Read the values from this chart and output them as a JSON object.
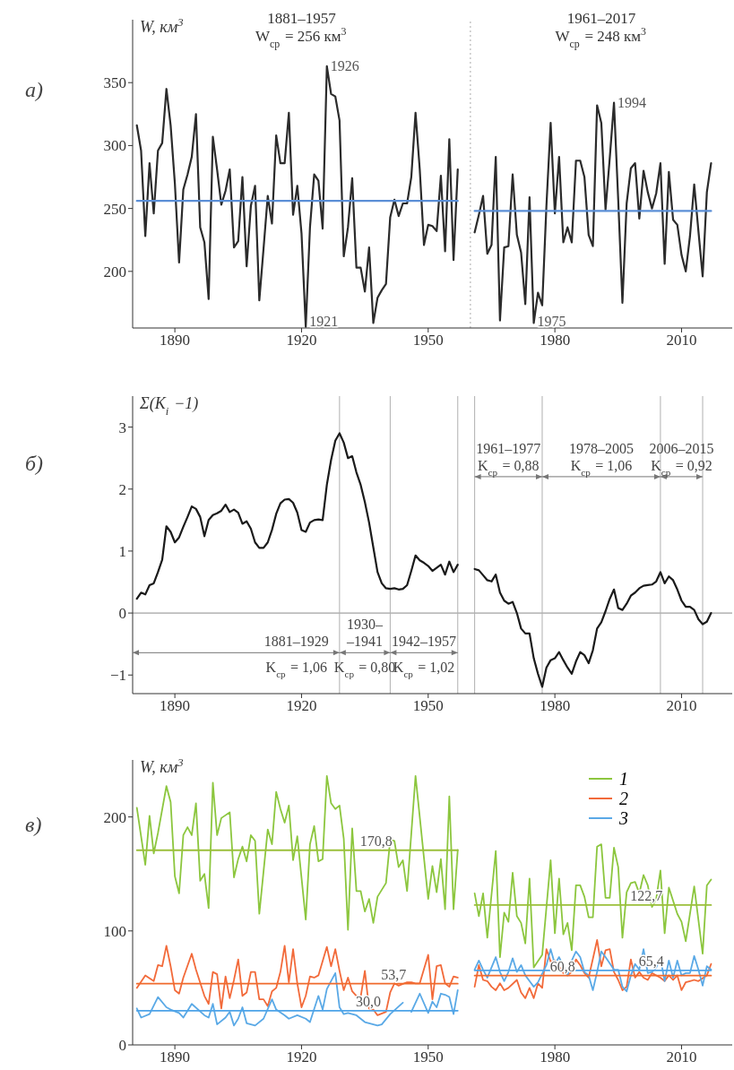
{
  "chart_data": [
    {
      "type": "line",
      "title": "а)",
      "ylabel": "W, км$^{3}$",
      "xlim": [
        1880,
        2022
      ],
      "ylim": [
        155,
        400
      ],
      "xticks": [
        1890,
        1920,
        1950,
        1980,
        2010
      ],
      "yticks": [
        200,
        250,
        300,
        350
      ],
      "series": [
        {
          "color": "#2b2b2b",
          "x": [
            1881,
            1882,
            1883,
            1884,
            1885,
            1886,
            1887,
            1888,
            1889,
            1890,
            1891,
            1892,
            1893,
            1894,
            1895,
            1896,
            1897,
            1898,
            1899,
            1900,
            1901,
            1902,
            1903,
            1904,
            1905,
            1906,
            1907,
            1908,
            1909,
            1910,
            1911,
            1912,
            1913,
            1914,
            1915,
            1916,
            1917,
            1918,
            1919,
            1920,
            1921,
            1922,
            1923,
            1924,
            1925,
            1926,
            1927,
            1928,
            1929,
            1930,
            1931,
            1932,
            1933,
            1934,
            1935,
            1936,
            1937,
            1938,
            1939,
            1940,
            1941,
            1942,
            1943,
            1944,
            1945,
            1946,
            1947,
            1948,
            1949,
            1950,
            1951,
            1952,
            1953,
            1954,
            1955,
            1956,
            1957
          ],
          "values": [
            316,
            296,
            228,
            286,
            246,
            296,
            302,
            345,
            316,
            270,
            207,
            265,
            277,
            291,
            325,
            235,
            223,
            178,
            307,
            281,
            253,
            264,
            281,
            219,
            224,
            275,
            204,
            252,
            268,
            177,
            218,
            260,
            238,
            308,
            286,
            286,
            326,
            245,
            268,
            230,
            156,
            235,
            277,
            272,
            234,
            363,
            341,
            339,
            320,
            212,
            235,
            274,
            203,
            203,
            184,
            219,
            159,
            179,
            185,
            190,
            243,
            257,
            244,
            254,
            254,
            275,
            326,
            281,
            221,
            237,
            236,
            232,
            276,
            216,
            305,
            209,
            281
          ]
        },
        {
          "color": "#2b2b2b",
          "x": [
            1961,
            1962,
            1963,
            1964,
            1965,
            1966,
            1967,
            1968,
            1969,
            1970,
            1971,
            1972,
            1973,
            1974,
            1975,
            1976,
            1977,
            1978,
            1979,
            1980,
            1981,
            1982,
            1983,
            1984,
            1985,
            1986,
            1987,
            1988,
            1989,
            1990,
            1991,
            1992,
            1993,
            1994,
            1995,
            1996,
            1997,
            1998,
            1999,
            2000,
            2001,
            2002,
            2003,
            2004,
            2005,
            2006,
            2007,
            2008,
            2009,
            2010,
            2011,
            2012,
            2013,
            2014,
            2015,
            2016,
            2017
          ],
          "values": [
            231,
            245,
            260,
            214,
            221,
            291,
            161,
            219,
            220,
            277,
            229,
            215,
            174,
            259,
            159,
            183,
            173,
            252,
            318,
            246,
            291,
            223,
            235,
            223,
            288,
            288,
            275,
            229,
            220,
            332,
            318,
            249,
            290,
            334,
            257,
            175,
            254,
            282,
            286,
            242,
            280,
            263,
            250,
            262,
            286,
            206,
            279,
            241,
            237,
            213,
            200,
            228,
            269,
            232,
            196,
            263,
            286
          ]
        },
        {
          "color": "#5b8fd6",
          "x": [
            1881,
            1957
          ],
          "values": [
            256,
            256
          ]
        },
        {
          "color": "#5b8fd6",
          "x": [
            1961,
            2017
          ],
          "values": [
            248,
            248
          ]
        }
      ],
      "ref_lines": [
        {
          "axis": "x",
          "value": 1960,
          "color": "#aaaaaa",
          "line_style": "dotted"
        }
      ],
      "annotations": [
        "1881–1957\nW$_{ср}$ = 256 км$^{3}$",
        "1961–2017\nW$_{ср}$ = 248 км$^{3}$",
        {
          "text": "1926",
          "x": 1926,
          "y": 363
        },
        {
          "text": "1921",
          "x": 1921,
          "y": 160
        },
        {
          "text": "1975",
          "x": 1975,
          "y": 160
        },
        {
          "text": "1994",
          "x": 1994,
          "y": 334
        }
      ]
    },
    {
      "type": "line",
      "title": "б)",
      "ylabel": "Σ(K$_{i}$ −1)",
      "xlim": [
        1880,
        2022
      ],
      "ylim": [
        -1.3,
        3.5
      ],
      "xticks": [
        1890,
        1920,
        1950,
        1980,
        2010
      ],
      "yticks": [
        -1,
        0,
        1,
        2,
        3
      ],
      "series": [
        {
          "color": "#1a1a1a",
          "x": [
            1881,
            1882,
            1883,
            1884,
            1885,
            1886,
            1887,
            1888,
            1889,
            1890,
            1891,
            1892,
            1893,
            1894,
            1895,
            1896,
            1897,
            1898,
            1899,
            1900,
            1901,
            1902,
            1903,
            1904,
            1905,
            1906,
            1907,
            1908,
            1909,
            1910,
            1911,
            1912,
            1913,
            1914,
            1915,
            1916,
            1917,
            1918,
            1919,
            1920,
            1921,
            1922,
            1923,
            1924,
            1925,
            1926,
            1927,
            1928,
            1929,
            1930,
            1931,
            1932,
            1933,
            1934,
            1935,
            1936,
            1937,
            1938,
            1939,
            1940,
            1941,
            1942,
            1943,
            1944,
            1945,
            1946,
            1947,
            1948,
            1949,
            1950,
            1951,
            1952,
            1953,
            1954,
            1955,
            1956,
            1957
          ],
          "values": [
            0.23,
            0.33,
            0.3,
            0.45,
            0.48,
            0.66,
            0.86,
            1.4,
            1.31,
            1.14,
            1.22,
            1.39,
            1.55,
            1.72,
            1.68,
            1.55,
            1.24,
            1.5,
            1.58,
            1.61,
            1.65,
            1.75,
            1.63,
            1.67,
            1.62,
            1.44,
            1.48,
            1.36,
            1.14,
            1.05,
            1.05,
            1.14,
            1.34,
            1.6,
            1.77,
            1.83,
            1.84,
            1.78,
            1.62,
            1.34,
            1.31,
            1.46,
            1.5,
            1.51,
            1.5,
            2.07,
            2.47,
            2.78,
            2.9,
            2.75,
            2.5,
            2.53,
            2.27,
            2.07,
            1.79,
            1.46,
            1.06,
            0.66,
            0.48,
            0.4,
            0.39,
            0.4,
            0.38,
            0.39,
            0.45,
            0.68,
            0.93,
            0.85,
            0.81,
            0.76,
            0.68,
            0.73,
            0.78,
            0.62,
            0.83,
            0.66,
            0.78
          ]
        },
        {
          "color": "#1a1a1a",
          "x": [
            1961,
            1962,
            1963,
            1964,
            1965,
            1966,
            1967,
            1968,
            1969,
            1970,
            1971,
            1972,
            1973,
            1974,
            1975,
            1976,
            1977,
            1978,
            1979,
            1980,
            1981,
            1982,
            1983,
            1984,
            1985,
            1986,
            1987,
            1988,
            1989,
            1990,
            1991,
            1992,
            1993,
            1994,
            1995,
            1996,
            1997,
            1998,
            1999,
            2000,
            2001,
            2002,
            2003,
            2004,
            2005,
            2006,
            2007,
            2008,
            2009,
            2010,
            2011,
            2012,
            2013,
            2014,
            2015,
            2016,
            2017
          ],
          "values": [
            0.71,
            0.69,
            0.61,
            0.53,
            0.51,
            0.62,
            0.33,
            0.2,
            0.15,
            0.18,
            0.0,
            -0.25,
            -0.33,
            -0.33,
            -0.73,
            -0.98,
            -1.19,
            -0.88,
            -0.76,
            -0.73,
            -0.63,
            -0.76,
            -0.88,
            -0.98,
            -0.78,
            -0.63,
            -0.68,
            -0.81,
            -0.6,
            -0.25,
            -0.15,
            0.03,
            0.23,
            0.38,
            0.08,
            0.05,
            0.15,
            0.28,
            0.33,
            0.4,
            0.44,
            0.45,
            0.46,
            0.51,
            0.66,
            0.48,
            0.59,
            0.53,
            0.38,
            0.2,
            0.1,
            0.1,
            0.05,
            -0.1,
            -0.18,
            -0.14,
            0.0
          ]
        }
      ],
      "ref_lines": [
        {
          "axis": "y",
          "value": 0,
          "color": "#8a8a8a"
        },
        {
          "axis": "x",
          "value": 1929,
          "color": "#b0b0b0"
        },
        {
          "axis": "x",
          "value": 1941,
          "color": "#b0b0b0"
        },
        {
          "axis": "x",
          "value": 1957,
          "color": "#b0b0b0"
        },
        {
          "axis": "x",
          "value": 1961,
          "color": "#b0b0b0"
        },
        {
          "axis": "x",
          "value": 1977,
          "color": "#b0b0b0"
        },
        {
          "axis": "x",
          "value": 2005,
          "color": "#b0b0b0"
        },
        {
          "axis": "x",
          "value": 2015,
          "color": "#b0b0b0"
        }
      ],
      "annotations": [
        {
          "text": "1881–1929\nK$_{ср}$ = 1,06",
          "x": 1929,
          "y": -0.64
        },
        {
          "text": "1930–\n–1941\nK$_{ср}$ = 0,80",
          "x": 1941,
          "y": -0.64
        },
        {
          "text": "1942–1957\nK$_{ср}$ = 1,02",
          "x": 1957,
          "y": -0.64
        },
        {
          "text": "1961–1977\nK$_{ср}$ = 0,88",
          "x": 1977,
          "y": 2.2
        },
        {
          "text": "1978–2005\nK$_{ср}$ = 1,06",
          "x": 2005,
          "y": 2.2
        },
        {
          "text": "2006–2015\nK$_{ср}$ = 0,92",
          "x": 2015,
          "y": 2.2
        }
      ]
    },
    {
      "type": "line",
      "title": "в)",
      "ylabel": "W, км$^{3}$",
      "xlim": [
        1880,
        2022
      ],
      "ylim": [
        0,
        250
      ],
      "xticks": [
        1890,
        1920,
        1950,
        1980,
        2010
      ],
      "yticks": [
        0,
        100,
        200
      ],
      "legend": "top right",
      "series": [
        {
          "name": "1",
          "color": "#8cc63e",
          "x": [
            1881,
            1883,
            1884,
            1885,
            1886,
            1888,
            1889,
            1890,
            1891,
            1892,
            1893,
            1894,
            1895,
            1896,
            1897,
            1898,
            1899,
            1900,
            1901,
            1903,
            1904,
            1905,
            1906,
            1907,
            1908,
            1909,
            1910,
            1911,
            1912,
            1913,
            1914,
            1915,
            1916,
            1917,
            1918,
            1919,
            1921,
            1922,
            1923,
            1924,
            1925,
            1926,
            1927,
            1928,
            1929,
            1930,
            1931,
            1932,
            1933,
            1934,
            1935,
            1936,
            1937,
            1938,
            1940,
            1941,
            1942,
            1943,
            1944,
            1945,
            1947,
            1950,
            1951,
            1952,
            1953,
            1954,
            1955,
            1956,
            1957
          ],
          "values": [
            208,
            158,
            201,
            168,
            186,
            227,
            213,
            148,
            133,
            184,
            191,
            184,
            212,
            144,
            150,
            120,
            230,
            184,
            199,
            204,
            147,
            163,
            174,
            161,
            184,
            179,
            115,
            152,
            189,
            176,
            222,
            207,
            195,
            210,
            162,
            183,
            110,
            176,
            192,
            161,
            163,
            236,
            212,
            207,
            210,
            181,
            101,
            190,
            135,
            135,
            117,
            128,
            107,
            130,
            142,
            180,
            179,
            156,
            162,
            135,
            236,
            128,
            157,
            134,
            163,
            119,
            218,
            119,
            171
          ]
        },
        {
          "name": "2",
          "color": "#f26a3a",
          "x": [
            1881,
            1883,
            1885,
            1886,
            1887,
            1888,
            1889,
            1890,
            1891,
            1892,
            1894,
            1895,
            1897,
            1898,
            1899,
            1900,
            1901,
            1902,
            1903,
            1904,
            1905,
            1906,
            1907,
            1908,
            1909,
            1910,
            1911,
            1912,
            1913,
            1914,
            1915,
            1916,
            1917,
            1918,
            1919,
            1920,
            1921,
            1922,
            1923,
            1924,
            1926,
            1927,
            1928,
            1929,
            1930,
            1931,
            1932,
            1933,
            1934,
            1935,
            1936,
            1937,
            1938,
            1940,
            1941,
            1942,
            1943,
            1945,
            1946,
            1947,
            1948,
            1950,
            1951,
            1952,
            1953,
            1954,
            1955,
            1956,
            1957
          ],
          "values": [
            50,
            61,
            56,
            70,
            69,
            87,
            69,
            48,
            45,
            59,
            80,
            66,
            43,
            36,
            64,
            62,
            32,
            60,
            41,
            57,
            75,
            43,
            46,
            64,
            64,
            40,
            40,
            34,
            47,
            50,
            64,
            87,
            55,
            84,
            54,
            33,
            43,
            60,
            59,
            61,
            86,
            69,
            84,
            65,
            48,
            59,
            47,
            43,
            42,
            65,
            32,
            31,
            26,
            29,
            46,
            54,
            52,
            55,
            55,
            54,
            54,
            79,
            40,
            69,
            70,
            54,
            51,
            60,
            59
          ]
        },
        {
          "name": "3",
          "color": "#5aa9e6",
          "x": [
            1881,
            1882,
            1884,
            1886,
            1888,
            1889,
            1891,
            1892,
            1894,
            1897,
            1898,
            1899,
            1900,
            1902,
            1903,
            1904,
            1905,
            1906,
            1907,
            1909,
            1911,
            1913,
            1914,
            1916,
            1917,
            1919,
            1921,
            1922,
            1924,
            1925,
            1926,
            1928,
            1929,
            1930,
            1931,
            1933,
            1935,
            1938,
            1939,
            1941,
            1944,
            1945,
            1946,
            1948,
            1950,
            1951,
            1952,
            1953,
            1954,
            1955,
            1956,
            1957
          ],
          "values": [
            32,
            24,
            27,
            42,
            33,
            31,
            28,
            24,
            36,
            26,
            24,
            36,
            18,
            24,
            29,
            17,
            23,
            33,
            19,
            17,
            23,
            40,
            31,
            26,
            23,
            26,
            23,
            20,
            43,
            31,
            49,
            63,
            33,
            27,
            28,
            26,
            20,
            17,
            18,
            27,
            37,
            null,
            29,
            45,
            28,
            38,
            33,
            45,
            44,
            42,
            27,
            48
          ]
        },
        {
          "color": "#9bbf3a",
          "x": [
            1881,
            1957
          ],
          "values": [
            170.8,
            170.8
          ]
        },
        {
          "color": "#f06a2c",
          "x": [
            1881,
            1957
          ],
          "values": [
            53.7,
            53.7
          ]
        },
        {
          "color": "#4da3e8",
          "x": [
            1881,
            1957
          ],
          "values": [
            30.0,
            30.0
          ]
        },
        {
          "color": "#8cc63e",
          "x": [
            1961,
            1962,
            1963,
            1964,
            1966,
            1967,
            1968,
            1969,
            1970,
            1971,
            1972,
            1973,
            1974,
            1975,
            1977,
            1979,
            1980,
            1981,
            1982,
            1983,
            1984,
            1985,
            1986,
            1987,
            1988,
            1989,
            1990,
            1991,
            1992,
            1993,
            1994,
            1995,
            1996,
            1997,
            1998,
            1999,
            2000,
            2001,
            2002,
            2003,
            2004,
            2005,
            2006,
            2007,
            2009,
            2010,
            2011,
            2013,
            2015,
            2016,
            2017
          ],
          "values": [
            133,
            113,
            133,
            94,
            170,
            77,
            116,
            108,
            151,
            113,
            107,
            89,
            146,
            68,
            79,
            162,
            98,
            146,
            97,
            107,
            83,
            140,
            140,
            130,
            112,
            112,
            174,
            176,
            129,
            129,
            173,
            156,
            94,
            134,
            142,
            143,
            133,
            149,
            140,
            121,
            128,
            153,
            98,
            138,
            115,
            108,
            91,
            139,
            80,
            140,
            145
          ]
        },
        {
          "color": "#f26a3a",
          "x": [
            1961,
            1962,
            1963,
            1964,
            1965,
            1966,
            1967,
            1968,
            1969,
            1971,
            1972,
            1973,
            1974,
            1975,
            1976,
            1977,
            1978,
            1979,
            1980,
            1981,
            1982,
            1983,
            1984,
            1985,
            1986,
            1987,
            1988,
            1990,
            1991,
            1992,
            1993,
            1994,
            1995,
            1996,
            1997,
            1998,
            1999,
            2000,
            2001,
            2002,
            2003,
            2005,
            2006,
            2007,
            2008,
            2009,
            2010,
            2011,
            2012,
            2013,
            2014,
            2016,
            2017
          ],
          "values": [
            51,
            70,
            57,
            56,
            51,
            48,
            54,
            48,
            50,
            57,
            46,
            41,
            50,
            41,
            54,
            50,
            84,
            73,
            74,
            69,
            63,
            61,
            64,
            75,
            70,
            63,
            59,
            92,
            69,
            83,
            84,
            64,
            57,
            48,
            51,
            75,
            59,
            64,
            59,
            57,
            63,
            59,
            56,
            61,
            57,
            61,
            48,
            55,
            56,
            57,
            56,
            61,
            71
          ]
        },
        {
          "color": "#5aa9e6",
          "x": [
            1961,
            1962,
            1963,
            1964,
            1966,
            1967,
            1968,
            1969,
            1970,
            1971,
            1972,
            1973,
            1974,
            1975,
            1976,
            1978,
            1979,
            1980,
            1981,
            1982,
            1983,
            1984,
            1985,
            1986,
            1987,
            1988,
            1989,
            1990,
            1991,
            1992,
            1994,
            1995,
            1996,
            1997,
            1998,
            1999,
            2000,
            2001,
            2002,
            2003,
            2004,
            2005,
            2006,
            2007,
            2008,
            2009,
            2010,
            2011,
            2012,
            2013,
            2014,
            2015,
            2016,
            2017
          ],
          "values": [
            66,
            74,
            66,
            59,
            77,
            64,
            56,
            64,
            76,
            64,
            70,
            61,
            56,
            51,
            55,
            70,
            84,
            71,
            77,
            69,
            61,
            74,
            82,
            77,
            64,
            61,
            48,
            64,
            82,
            77,
            66,
            66,
            51,
            47,
            61,
            71,
            66,
            84,
            63,
            64,
            68,
            76,
            56,
            74,
            59,
            74,
            61,
            63,
            63,
            78,
            66,
            52,
            69,
            66
          ]
        },
        {
          "color": "#9bbf3a",
          "x": [
            1961,
            2017
          ],
          "values": [
            122.7,
            122.7
          ]
        },
        {
          "color": "#f06a2c",
          "x": [
            1961,
            2017
          ],
          "values": [
            60.8,
            60.8
          ]
        },
        {
          "color": "#4da3e8",
          "x": [
            1961,
            2017
          ],
          "values": [
            65.4,
            65.4
          ]
        }
      ],
      "annotations": [
        {
          "text": "170,8",
          "x": 1933,
          "y": 170.8
        },
        {
          "text": "53,7",
          "x": 1938,
          "y": 53.7
        },
        {
          "text": "30,0",
          "x": 1932,
          "y": 30.0
        },
        {
          "text": "122,7",
          "x": 1997,
          "y": 122.7
        },
        {
          "text": "60,8",
          "x": 1978,
          "y": 60.8
        },
        {
          "text": "65,4",
          "x": 1999,
          "y": 65.4
        }
      ]
    }
  ]
}
